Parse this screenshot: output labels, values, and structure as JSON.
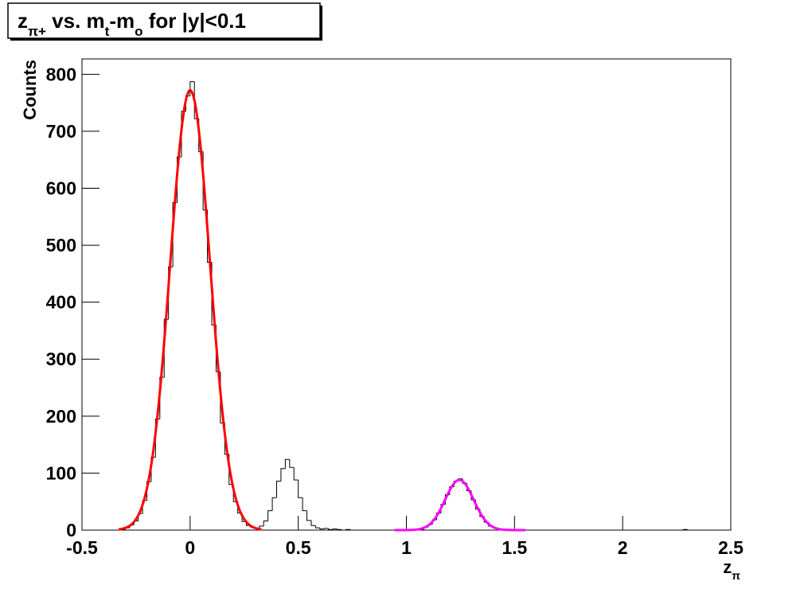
{
  "chart_data": {
    "type": "histogram",
    "title": [
      {
        "text": "z"
      },
      {
        "text": "π+",
        "sub": true
      },
      {
        "text": " vs. m"
      },
      {
        "text": "t",
        "sub": true
      },
      {
        "text": "-m"
      },
      {
        "text": "o",
        "sub": true
      },
      {
        "text": " for |y|<0.1"
      }
    ],
    "xlabel": [
      {
        "text": "z"
      },
      {
        "text": "π",
        "sub": true
      }
    ],
    "ylabel": "Counts",
    "color": "#000000",
    "xlim": [
      -0.5,
      2.5
    ],
    "ylim": [
      0,
      827
    ],
    "xticks": [
      -0.5,
      0,
      0.5,
      1,
      1.5,
      2,
      2.5
    ],
    "yticks": [
      0,
      100,
      200,
      300,
      400,
      500,
      600,
      700,
      800
    ],
    "bins": [
      -0.5,
      -0.48,
      -0.46,
      -0.44,
      -0.42,
      -0.4,
      -0.38,
      -0.36,
      -0.34,
      -0.32,
      -0.3,
      -0.28,
      -0.26,
      -0.24,
      -0.22,
      -0.2,
      -0.18,
      -0.16,
      -0.14,
      -0.12,
      -0.1,
      -0.08,
      -0.06,
      -0.04,
      -0.02,
      0,
      0.02,
      0.04,
      0.06,
      0.08,
      0.1,
      0.12,
      0.14,
      0.16,
      0.18,
      0.2,
      0.22,
      0.24,
      0.26,
      0.28,
      0.3,
      0.32,
      0.34,
      0.36,
      0.38,
      0.4,
      0.42,
      0.44,
      0.46,
      0.48,
      0.5,
      0.52,
      0.54,
      0.56,
      0.58,
      0.6,
      0.62,
      0.64,
      0.66,
      0.68,
      0.7,
      0.72,
      0.74,
      0.76,
      0.78,
      0.8,
      0.82,
      0.84,
      0.86,
      0.88,
      0.9,
      0.92,
      0.94,
      0.96,
      0.98,
      1,
      1.02,
      1.04,
      1.06,
      1.08,
      1.1,
      1.12,
      1.14,
      1.16,
      1.18,
      1.2,
      1.22,
      1.24,
      1.26,
      1.28,
      1.3,
      1.32,
      1.34,
      1.36,
      1.38,
      1.4,
      1.42,
      1.44,
      1.46,
      1.48,
      1.5,
      1.52,
      1.54,
      1.56,
      1.58,
      1.6,
      1.62,
      1.64,
      1.66,
      1.68,
      1.7,
      1.72,
      1.74,
      1.76,
      1.78,
      1.8,
      1.82,
      1.84,
      1.86,
      1.88,
      1.9,
      1.92,
      1.94,
      1.96,
      1.98,
      2,
      2.02,
      2.04,
      2.06,
      2.08,
      2.1,
      2.12,
      2.14,
      2.16,
      2.18,
      2.2,
      2.22,
      2.24,
      2.26,
      2.28,
      2.3,
      2.32,
      2.34,
      2.36,
      2.38,
      2.4,
      2.42,
      2.44,
      2.46,
      2.48,
      2.5
    ],
    "values": [
      0,
      0,
      0,
      0,
      0,
      0,
      0,
      0,
      0,
      1,
      4,
      9,
      16,
      29,
      52,
      85,
      128,
      195,
      268,
      370,
      462,
      575,
      655,
      735,
      762,
      787,
      722,
      664,
      562,
      470,
      360,
      278,
      188,
      133,
      80,
      50,
      30,
      15,
      8,
      5,
      3,
      7,
      16,
      34,
      57,
      86,
      108,
      124,
      110,
      88,
      57,
      34,
      17,
      8,
      4,
      2,
      3,
      1,
      2,
      1,
      0,
      1,
      0,
      0,
      0,
      0,
      0,
      0,
      0,
      0,
      0,
      0,
      0,
      0,
      0,
      0,
      0,
      0,
      1,
      5,
      10,
      18,
      30,
      45,
      62,
      76,
      86,
      90,
      82,
      69,
      53,
      37,
      24,
      14,
      7,
      4,
      2,
      1,
      0,
      0,
      0,
      0,
      0,
      0,
      0,
      0,
      0,
      0,
      0,
      0,
      0,
      0,
      0,
      0,
      0,
      0,
      0,
      0,
      0,
      0,
      0,
      0,
      0,
      0,
      0,
      0,
      0,
      0,
      0,
      0,
      0,
      0,
      0,
      0,
      0,
      0,
      0,
      0,
      0,
      1,
      0,
      0,
      0,
      0,
      0,
      0,
      0,
      0,
      0,
      0
    ],
    "fits": [
      {
        "color": "#ff0000",
        "amplitude": 772,
        "mean": 0,
        "sigma": 0.092,
        "range": [
          -0.33,
          0.33
        ]
      },
      {
        "color": "#ff00ff",
        "amplitude": 88,
        "mean": 1.245,
        "sigma": 0.066,
        "range": [
          0.945,
          1.55
        ]
      }
    ]
  }
}
